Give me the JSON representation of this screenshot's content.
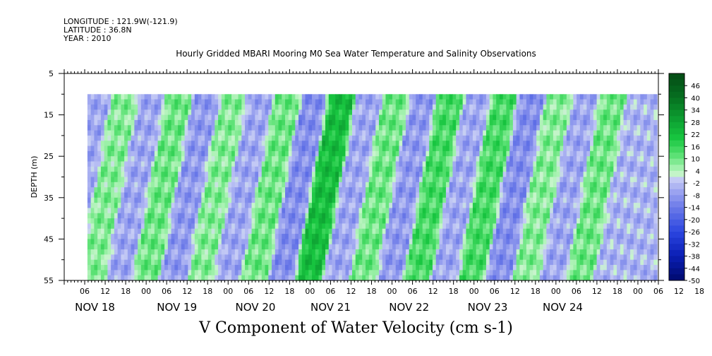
{
  "header": {
    "longitude": "LONGITUDE : 121.9W(-121.9)",
    "latitude": "LATITUDE : 36.8N",
    "year": "YEAR : 2010"
  },
  "chart_data": {
    "type": "heatmap",
    "title": "Hourly Gridded MBARI Mooring M0 Sea Water Temperature and Salinity Observations",
    "xlabel": "V Component of Water Velocity (cm s-1)",
    "ylabel": "DEPTH (m)",
    "ylim": [
      5,
      55
    ],
    "y_inverted": true,
    "y_ticks": [
      5,
      15,
      25,
      35,
      45,
      55
    ],
    "x_hour_labels": [
      "06",
      "12",
      "18",
      "00",
      "06",
      "12",
      "18",
      "00",
      "06",
      "12",
      "18",
      "00",
      "06",
      "12",
      "18",
      "00",
      "06",
      "12",
      "18",
      "00",
      "06",
      "12",
      "18",
      "00",
      "06",
      "12",
      "18",
      "00",
      "06",
      "12",
      "18",
      "00"
    ],
    "x_day_labels": [
      "NOV 18",
      "NOV 19",
      "NOV 20",
      "NOV 21",
      "NOV 22",
      "NOV 23",
      "NOV 24"
    ],
    "colorbar_labels": [
      "46",
      "40",
      "34",
      "28",
      "22",
      "16",
      "10",
      "4",
      "-2",
      "-8",
      "-14",
      "-20",
      "-26",
      "-32",
      "-38",
      "-44",
      "-50"
    ],
    "colorbar_range": [
      -50,
      52
    ],
    "colorbar_step": 3,
    "data_depth_range": [
      10,
      55
    ],
    "data_start_hour": 6.8,
    "day_centers_hours": [
      9,
      33,
      56,
      78,
      101,
      124,
      146
    ],
    "band_values": [
      -6,
      8,
      -6,
      10,
      -8,
      8,
      -6,
      10,
      -10,
      22,
      -6,
      10,
      -8,
      14,
      -6,
      14,
      -10,
      8,
      -6,
      10,
      -4
    ],
    "colors": {
      "strong_positive": "#0a9a30",
      "weak_positive": "#9cf0a8",
      "weak_negative": "#a8aef0",
      "strong_negative": "#1a2ad0"
    }
  }
}
